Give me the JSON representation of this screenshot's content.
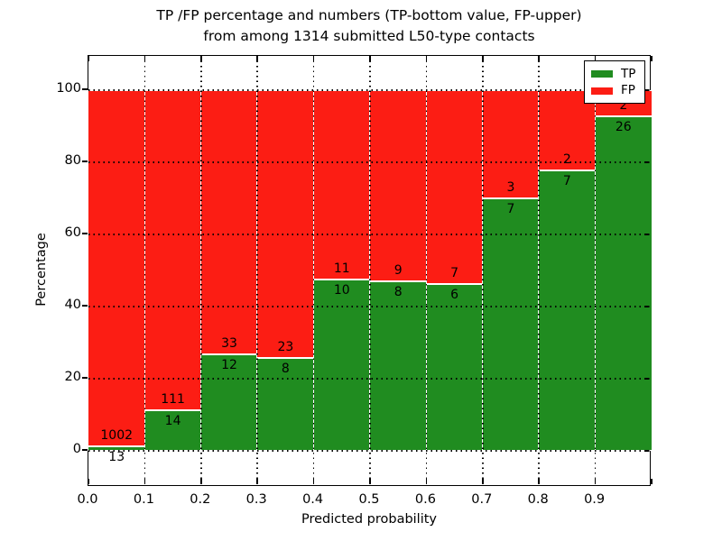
{
  "chart_data": {
    "type": "bar",
    "stacked": true,
    "title": "TP /FP percentage and numbers (TP-bottom value, FP-upper)",
    "subtitle": "from among 1314 submitted L50-type contacts",
    "xlabel": "Predicted probability",
    "ylabel": "Percentage",
    "total_contacts": 1314,
    "bins": [
      "0.0-0.1",
      "0.1-0.2",
      "0.2-0.3",
      "0.3-0.4",
      "0.4-0.5",
      "0.5-0.6",
      "0.6-0.7",
      "0.7-0.8",
      "0.8-0.9",
      "0.9-1.0"
    ],
    "x_tick_labels": [
      "0.0",
      "0.1",
      "0.2",
      "0.3",
      "0.4",
      "0.5",
      "0.6",
      "0.7",
      "0.8",
      "0.9"
    ],
    "y_tick_values": [
      0,
      20,
      40,
      60,
      80,
      100
    ],
    "xlim": [
      0.0,
      1.0
    ],
    "ylim": [
      -10,
      109.5
    ],
    "grid": "dotted",
    "legend_position": "upper right",
    "series": [
      {
        "name": "TP",
        "color": "#208c20",
        "counts": [
          13,
          14,
          12,
          8,
          10,
          8,
          6,
          7,
          7,
          26
        ]
      },
      {
        "name": "FP",
        "color": "#fc1d14",
        "counts": [
          1002,
          111,
          33,
          23,
          11,
          9,
          7,
          3,
          2,
          2
        ]
      }
    ]
  }
}
